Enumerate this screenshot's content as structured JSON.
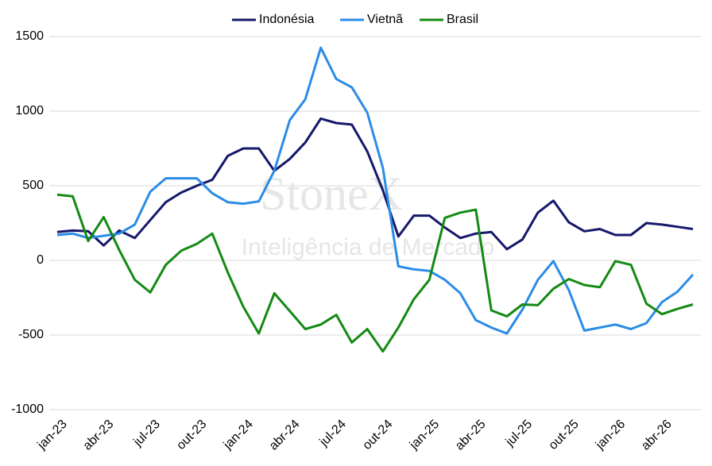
{
  "chart_data": {
    "type": "line",
    "watermark": "StoneX",
    "watermark_subtitle": "Inteligência de Mercado",
    "categories": [
      "jan-23",
      null,
      null,
      "abr-23",
      null,
      null,
      "jul-23",
      null,
      null,
      "out-23",
      null,
      null,
      "jan-24",
      null,
      null,
      "abr-24",
      null,
      null,
      "jul-24",
      null,
      null,
      "out-24",
      null,
      null,
      "jan-25",
      null,
      null,
      "abr-25",
      null,
      null,
      "jul-25",
      null,
      null,
      "out-25",
      null,
      null,
      "jan-26",
      null,
      null,
      "abr-26",
      null,
      null
    ],
    "series": [
      {
        "name": "Indonésia",
        "color": "#15186b",
        "values": [
          190,
          200,
          195,
          100,
          200,
          150,
          270,
          390,
          455,
          500,
          540,
          700,
          750,
          750,
          600,
          680,
          790,
          950,
          920,
          910,
          730,
          470,
          160,
          300,
          300,
          220,
          150,
          180,
          190,
          75,
          140,
          320,
          400,
          255,
          195,
          210,
          170,
          170,
          250,
          240,
          225,
          210
        ]
      },
      {
        "name": "Vietnã",
        "color": "#2b8ce6",
        "values": [
          170,
          180,
          150,
          165,
          180,
          240,
          460,
          550,
          550,
          550,
          450,
          390,
          380,
          395,
          600,
          940,
          1080,
          1425,
          1215,
          1160,
          990,
          620,
          -40,
          -60,
          -70,
          -130,
          -220,
          -400,
          -450,
          -490,
          -330,
          -130,
          -5,
          -200,
          -470,
          -450,
          -430,
          -460,
          -420,
          -280,
          -210,
          -95
        ]
      },
      {
        "name": "Brasil",
        "color": "#148a14",
        "values": [
          440,
          430,
          130,
          290,
          70,
          -130,
          -215,
          -30,
          65,
          110,
          180,
          -80,
          -310,
          -490,
          -220,
          -340,
          -460,
          -430,
          -365,
          -550,
          -460,
          -610,
          -450,
          -260,
          -130,
          285,
          320,
          340,
          -335,
          -375,
          -295,
          -300,
          -190,
          -125,
          -165,
          -180,
          -5,
          -30,
          -290,
          -360,
          -325,
          -295
        ]
      }
    ],
    "ylim": [
      -1000,
      1500
    ],
    "yticks": [
      -1000,
      -500,
      0,
      500,
      1000,
      1500
    ],
    "grid": true,
    "legend": "top"
  }
}
